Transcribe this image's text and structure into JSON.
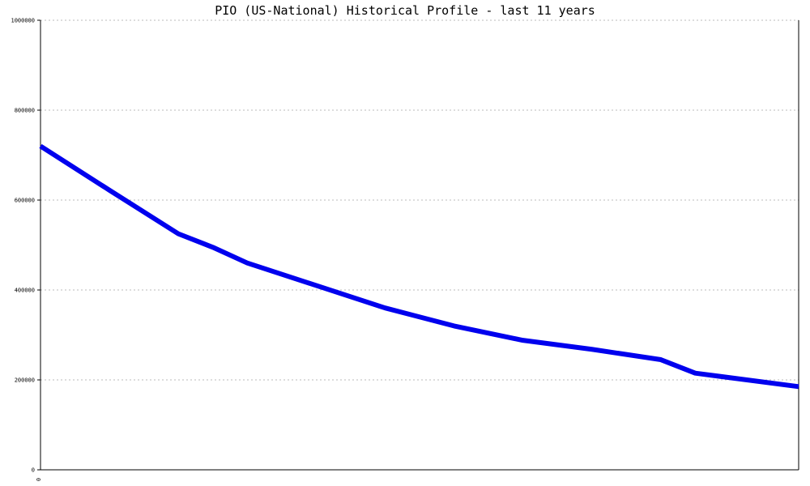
{
  "chart_data": {
    "type": "line",
    "title": "PIO (US-National) Historical Profile - last 11 years",
    "xlabel": "",
    "ylabel": "",
    "x_tick_labels": [
      "0"
    ],
    "y_tick_labels": [
      "0",
      "200000",
      "400000",
      "600000",
      "800000",
      "1000000"
    ],
    "ylim": [
      0,
      1000000
    ],
    "xlim": [
      0,
      11
    ],
    "grid": "horizontal-dotted",
    "legend": "none",
    "series": [
      {
        "x": [
          0,
          1,
          2,
          2.5,
          3,
          4,
          5,
          6,
          7,
          8,
          9,
          9.5,
          11
        ],
        "values": [
          720000,
          622000,
          525000,
          495000,
          460000,
          410000,
          360000,
          320000,
          288000,
          268000,
          245000,
          215000,
          185000
        ]
      }
    ],
    "colors": {
      "line": "#0000ee",
      "axis": "#000000",
      "grid": "#bbbbbb"
    }
  }
}
